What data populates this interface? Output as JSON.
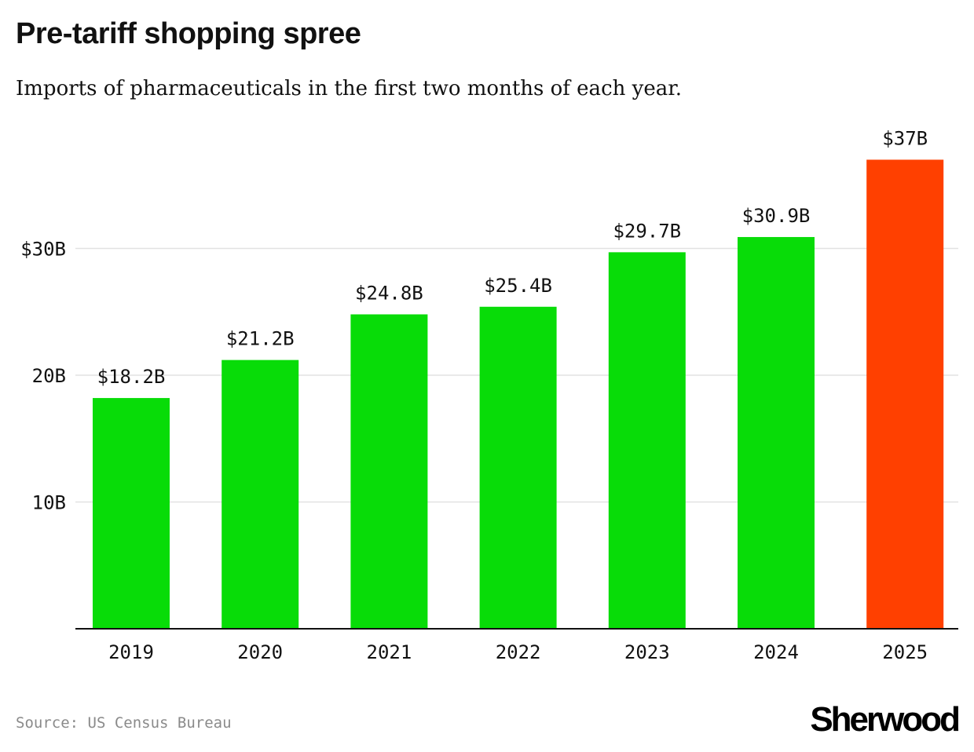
{
  "header": {
    "title": "Pre-tariff shopping spree",
    "subtitle": "Imports of pharmaceuticals in the first two months of each year."
  },
  "footer": {
    "source": "Source: US Census Bureau",
    "logo": "Sherwood"
  },
  "colors": {
    "bar": "#08dc08",
    "highlight": "#ff4000",
    "grid": "#e2e2e2",
    "axis": "#111111"
  },
  "chart_data": {
    "type": "bar",
    "title": "Pre-tariff shopping spree",
    "subtitle": "Imports of pharmaceuticals in the first two months of each year.",
    "xlabel": "",
    "ylabel": "",
    "categories": [
      "2019",
      "2020",
      "2021",
      "2022",
      "2023",
      "2024",
      "2025"
    ],
    "values": [
      18.2,
      21.2,
      24.8,
      25.4,
      29.7,
      30.9,
      37
    ],
    "value_labels": [
      "$18.2B",
      "$21.2B",
      "$24.8B",
      "$25.4B",
      "$29.7B",
      "$30.9B",
      "$37B"
    ],
    "highlight_index": 6,
    "ylim": [
      0,
      40
    ],
    "yticks": [
      {
        "value": 10,
        "label": "10B"
      },
      {
        "value": 20,
        "label": "20B"
      },
      {
        "value": 30,
        "label": "$30B"
      }
    ],
    "grid": true,
    "legend": "none"
  }
}
